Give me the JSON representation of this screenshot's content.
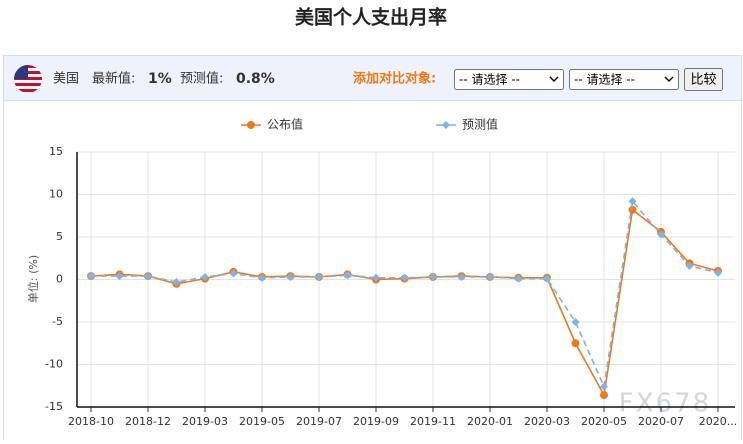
{
  "header": {
    "title": "美国个人支出月率"
  },
  "toolbar": {
    "country": "美国",
    "latest_label": "最新值:",
    "latest_value": "1%",
    "forecast_label": "预测值:",
    "forecast_value": "0.8%",
    "compare_label": "添加对比对象:",
    "select_1": "-- 请选择 --",
    "select_2": "-- 请选择 --",
    "button": "比较"
  },
  "watermark": "FX678",
  "chart_data": {
    "type": "line",
    "ylabel": "单位: (%)",
    "categories": [
      "2018-10",
      null,
      "2018-12",
      null,
      "2019-03",
      null,
      "2019-05",
      null,
      "2019-07",
      null,
      "2019-09",
      null,
      "2019-11",
      null,
      "2020-01",
      null,
      "2020-03",
      null,
      "2020-05",
      null,
      "2020-07",
      null,
      "2020..."
    ],
    "series": [
      {
        "name": "公布值",
        "color": "#f07a1a",
        "dashed": false,
        "values": [
          0.4,
          0.6,
          0.4,
          -0.5,
          0.1,
          0.9,
          0.3,
          0.4,
          0.3,
          0.6,
          0.0,
          0.1,
          0.3,
          0.4,
          0.3,
          0.2,
          0.2,
          -7.5,
          -13.6,
          8.2,
          5.6,
          1.9,
          1.0
        ]
      },
      {
        "name": "预测值",
        "color": "#7fb2e5",
        "dashed": true,
        "values": [
          0.4,
          0.4,
          0.4,
          -0.3,
          0.3,
          0.7,
          0.2,
          0.3,
          0.3,
          0.5,
          0.2,
          0.2,
          0.3,
          0.3,
          0.3,
          0.1,
          0.1,
          -5.0,
          -12.6,
          9.2,
          5.3,
          1.6,
          0.8
        ]
      }
    ],
    "ylim": [
      -15,
      15
    ],
    "yticks": [
      -15,
      -10,
      -5,
      0,
      5,
      10,
      15
    ],
    "grid": true
  }
}
